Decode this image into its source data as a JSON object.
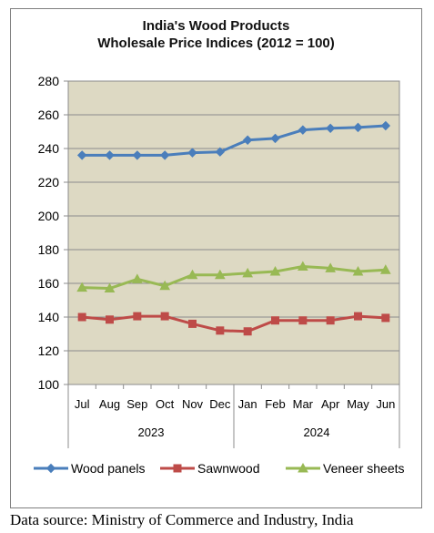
{
  "chart_data": {
    "type": "line",
    "title_line1": "India's Wood Products",
    "title_line2": "Wholesale Price Indices (2012 = 100)",
    "categories": [
      "Jul",
      "Aug",
      "Sep",
      "Oct",
      "Nov",
      "Dec",
      "Jan",
      "Feb",
      "Mar",
      "Apr",
      "May",
      "Jun"
    ],
    "year_groups": [
      {
        "label": "2023",
        "start": 0,
        "end": 5
      },
      {
        "label": "2024",
        "start": 6,
        "end": 11
      }
    ],
    "ylim": [
      100,
      280
    ],
    "yticks": [
      100,
      120,
      140,
      160,
      180,
      200,
      220,
      240,
      260,
      280
    ],
    "grid": true,
    "legend_position": "bottom",
    "series": [
      {
        "name": "Wood panels",
        "color": "#4a7ebb",
        "marker": "diamond",
        "values": [
          236,
          236,
          236,
          236,
          237.5,
          238,
          245,
          246,
          251,
          252,
          252.5,
          253.5
        ]
      },
      {
        "name": "Sawnwood",
        "color": "#be4b48",
        "marker": "square",
        "values": [
          140,
          138.5,
          140.5,
          140.5,
          136,
          132,
          131.5,
          138,
          138,
          138,
          140.5,
          139.5
        ]
      },
      {
        "name": "Veneer sheets",
        "color": "#98b954",
        "marker": "triangle",
        "values": [
          157.5,
          157,
          162.5,
          158.5,
          165,
          165,
          166,
          167,
          170,
          169,
          167,
          168
        ]
      }
    ]
  },
  "source": "Data source: Ministry of Commerce and Industry, India"
}
